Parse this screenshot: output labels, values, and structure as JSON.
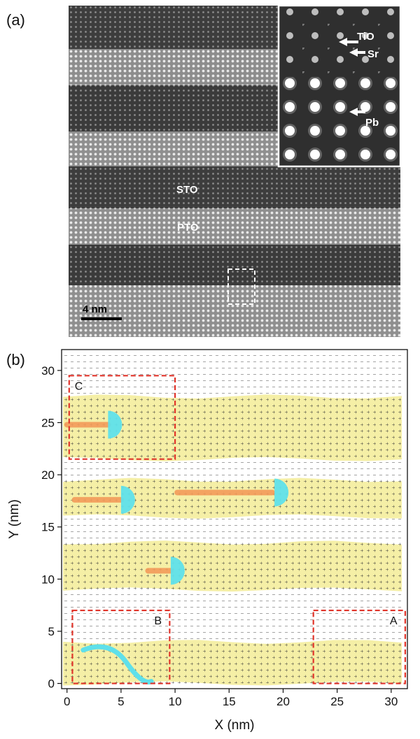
{
  "panel_a": {
    "label": "(a)",
    "layer_labels": {
      "sto": "STO",
      "pto": "PTO"
    },
    "scale_bar": "4 nm",
    "inset_labels": [
      "TiO",
      "Sr",
      "Pb"
    ]
  },
  "panel_b": {
    "label": "(b)",
    "box_labels": [
      "C",
      "B",
      "A"
    ]
  },
  "colors": {
    "pto_band": "#f5efa6",
    "vortex_core": "#f39a5a",
    "vortex_cap": "#5fe0ea",
    "region_box": "#e0342a"
  },
  "chart_data": {
    "type": "vector-field",
    "xlabel": "X (nm)",
    "ylabel": "Y (nm)",
    "xlim": [
      -0.5,
      31.5
    ],
    "ylim": [
      -0.5,
      32
    ],
    "xticks": [
      0,
      5,
      10,
      15,
      20,
      25,
      30
    ],
    "yticks": [
      0,
      5,
      10,
      15,
      20,
      25,
      30
    ],
    "pto_layers_y": [
      [
        0,
        4
      ],
      [
        9,
        13.5
      ],
      [
        16,
        19.5
      ],
      [
        21.5,
        27.5
      ]
    ],
    "regions": [
      {
        "name": "C",
        "x": [
          0.2,
          10
        ],
        "y": [
          21.5,
          29.5
        ]
      },
      {
        "name": "B",
        "x": [
          0.5,
          9.5
        ],
        "y": [
          0,
          7
        ]
      },
      {
        "name": "A",
        "x": [
          22.8,
          31.3
        ],
        "y": [
          0,
          7
        ]
      }
    ]
  }
}
